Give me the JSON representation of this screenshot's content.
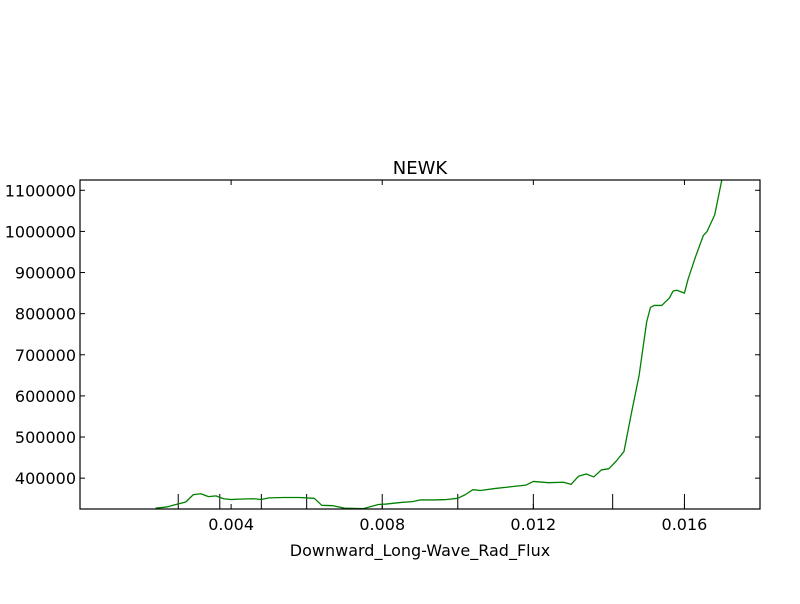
{
  "chart_data": {
    "type": "line",
    "title": "NEWK",
    "xlabel": "Downward_Long-Wave_Rad_Flux",
    "ylabel": "",
    "xlim": [
      0.0,
      0.018
    ],
    "ylim": [
      325000,
      1125000
    ],
    "xticks": [
      0.004,
      0.008,
      0.012,
      0.016
    ],
    "xtick_labels": [
      "0.004",
      "0.008",
      "0.012",
      "0.016"
    ],
    "yticks": [
      400000,
      500000,
      600000,
      700000,
      800000,
      900000,
      1000000,
      1100000
    ],
    "ytick_labels": [
      "400000",
      "500000",
      "600000",
      "700000",
      "800000",
      "900000",
      "1000000",
      "1100000"
    ],
    "rug_x": [
      0.0026,
      0.0037,
      0.0048,
      0.006,
      0.008,
      0.01,
      0.012,
      0.0141,
      0.016
    ],
    "grid": false,
    "line_color": "#008000",
    "series": [
      {
        "name": "",
        "x": [
          0.002,
          0.0023,
          0.0025,
          0.0028,
          0.003,
          0.0032,
          0.0034,
          0.0036,
          0.0038,
          0.004,
          0.0042,
          0.0046,
          0.0048,
          0.005,
          0.0054,
          0.0058,
          0.0062,
          0.0064,
          0.0067,
          0.007,
          0.0075,
          0.0079,
          0.0081,
          0.0085,
          0.0088,
          0.009,
          0.0094,
          0.0097,
          0.01,
          0.0102,
          0.0104,
          0.0106,
          0.011,
          0.0114,
          0.0118,
          0.012,
          0.0124,
          0.0128,
          0.013,
          0.0132,
          0.0134,
          0.0136,
          0.0138,
          0.014,
          0.0142,
          0.0144,
          0.0146,
          0.0148,
          0.015,
          0.0151,
          0.0152,
          0.0154,
          0.0156,
          0.0157,
          0.0158,
          0.016,
          0.0161,
          0.0163,
          0.0165,
          0.0166,
          0.0168,
          0.017
        ],
        "y": [
          327000,
          330000,
          335000,
          342000,
          360000,
          362000,
          355000,
          357000,
          350000,
          348000,
          349000,
          350000,
          348000,
          352000,
          353000,
          353000,
          351000,
          334000,
          333000,
          327000,
          326000,
          336000,
          337000,
          341000,
          343000,
          347000,
          347000,
          348000,
          351000,
          360000,
          372000,
          370000,
          375000,
          379000,
          383000,
          392000,
          389000,
          390000,
          385000,
          405000,
          410000,
          403000,
          420000,
          423000,
          442000,
          465000,
          560000,
          650000,
          780000,
          815000,
          820000,
          820000,
          838000,
          855000,
          857000,
          850000,
          885000,
          940000,
          990000,
          1000000,
          1040000,
          1130000
        ]
      }
    ]
  }
}
